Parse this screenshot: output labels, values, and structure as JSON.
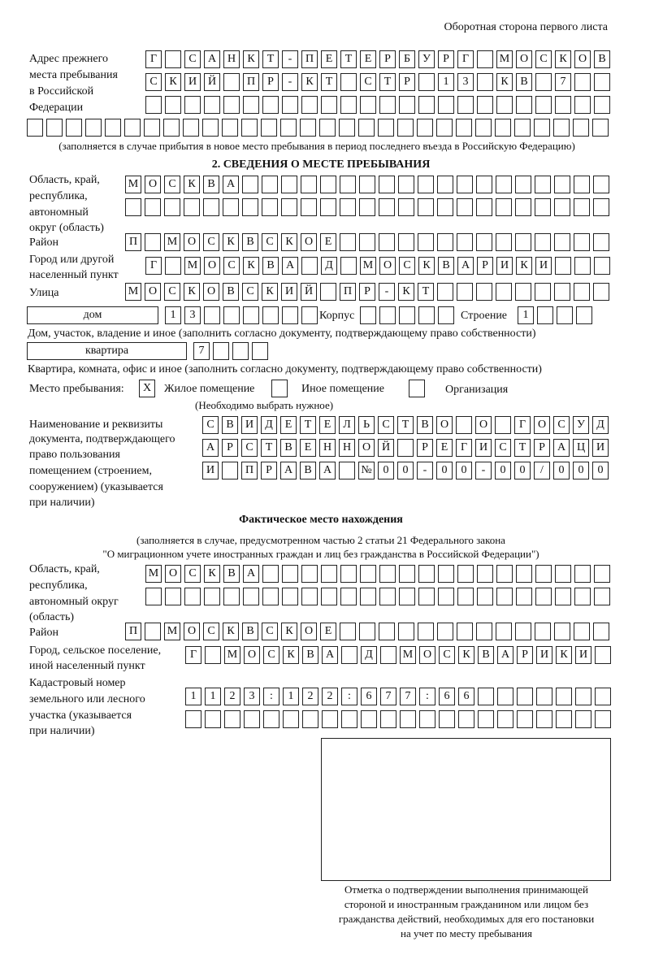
{
  "page_header": "Оборотная сторона первого листа",
  "previous_address": {
    "label": [
      "Адрес прежнего",
      "места пребывания",
      "в Российской",
      "Федерации"
    ],
    "rows": [
      [
        "Г",
        "",
        "С",
        "А",
        "Н",
        "К",
        "Т",
        "-",
        "П",
        "Е",
        "Т",
        "Е",
        "Р",
        "Б",
        "У",
        "Р",
        "Г",
        "",
        "М",
        "О",
        "С",
        "К",
        "О",
        "В"
      ],
      [
        "С",
        "К",
        "И",
        "Й",
        "",
        "П",
        "Р",
        "-",
        "К",
        "Т",
        "",
        "С",
        "Т",
        "Р",
        "",
        "1",
        "3",
        "",
        "К",
        "В",
        "",
        "7",
        "",
        ""
      ],
      [
        "",
        "",
        "",
        "",
        "",
        "",
        "",
        "",
        "",
        "",
        "",
        "",
        "",
        "",
        "",
        "",
        "",
        "",
        "",
        "",
        "",
        "",
        "",
        ""
      ],
      [
        "",
        "",
        "",
        "",
        "",
        "",
        "",
        "",
        "",
        "",
        "",
        "",
        "",
        "",
        "",
        "",
        "",
        "",
        "",
        "",
        "",
        "",
        "",
        "",
        "",
        "",
        "",
        "",
        "",
        ""
      ]
    ],
    "note": "(заполняется в случае прибытия в новое место пребывания в период последнего въезда в Российскую Федерацию)"
  },
  "section2": {
    "title": "2. СВЕДЕНИЯ О МЕСТЕ ПРЕБЫВАНИЯ",
    "region_label": [
      "Область, край,",
      "республика,",
      "автономный",
      "округ (область)"
    ],
    "region_rows": [
      [
        "М",
        "О",
        "С",
        "К",
        "В",
        "А",
        "",
        "",
        "",
        "",
        "",
        "",
        "",
        "",
        "",
        "",
        "",
        "",
        "",
        "",
        "",
        "",
        "",
        "",
        ""
      ],
      [
        "",
        "",
        "",
        "",
        "",
        "",
        "",
        "",
        "",
        "",
        "",
        "",
        "",
        "",
        "",
        "",
        "",
        "",
        "",
        "",
        "",
        "",
        "",
        "",
        ""
      ]
    ],
    "district_label": "Район",
    "district_row": [
      "П",
      "",
      "М",
      "О",
      "С",
      "К",
      "В",
      "С",
      "К",
      "О",
      "Е",
      "",
      "",
      "",
      "",
      "",
      "",
      "",
      "",
      "",
      "",
      "",
      "",
      "",
      ""
    ],
    "city_label": [
      "Город или другой",
      "населенный пункт"
    ],
    "city_row": [
      "Г",
      "",
      "М",
      "О",
      "С",
      "К",
      "В",
      "А",
      "",
      "Д",
      "",
      "М",
      "О",
      "С",
      "К",
      "В",
      "А",
      "Р",
      "И",
      "К",
      "И",
      "",
      "",
      ""
    ],
    "street_label": "Улица",
    "street_row": [
      "М",
      "О",
      "С",
      "К",
      "О",
      "В",
      "С",
      "К",
      "И",
      "Й",
      "",
      "П",
      "Р",
      "-",
      "К",
      "Т",
      "",
      "",
      "",
      "",
      "",
      "",
      "",
      "",
      ""
    ],
    "house_type": "дом",
    "house_row": [
      "1",
      "3",
      "",
      "",
      "",
      "",
      "",
      ""
    ],
    "korpus_label": "Корпус",
    "korpus_row": [
      "",
      "",
      "",
      "",
      ""
    ],
    "building_label": "Строение",
    "building_row": [
      "1",
      "",
      "",
      ""
    ],
    "house_note": "Дом, участок, владение и иное (заполнить согласно документу, подтверждающему право собственности)",
    "apartment_type": "квартира",
    "apartment_row": [
      "7",
      "",
      "",
      ""
    ],
    "apartment_note": "Квартира, комната, офис и иное (заполнить согласно документу, подтверждающему право собственности)",
    "stay_place_label": "Место пребывания:",
    "options": [
      {
        "mark": "X",
        "label": "Жилое помещение"
      },
      {
        "mark": "",
        "label": "Иное помещение"
      },
      {
        "mark": "",
        "label": "Организация"
      }
    ],
    "options_note": "(Необходимо выбрать нужное)",
    "document_label": [
      "Наименование и реквизиты",
      "документа, подтверждающего",
      "право пользования",
      "помещением (строением,",
      "сооружением) (указывается",
      "при наличии)"
    ],
    "document_rows": [
      [
        "С",
        "В",
        "И",
        "Д",
        "Е",
        "Т",
        "Е",
        "Л",
        "Ь",
        "С",
        "Т",
        "В",
        "О",
        "",
        "О",
        "",
        "Г",
        "О",
        "С",
        "У",
        "Д"
      ],
      [
        "А",
        "Р",
        "С",
        "Т",
        "В",
        "Е",
        "Н",
        "Н",
        "О",
        "Й",
        "",
        "Р",
        "Е",
        "Г",
        "И",
        "С",
        "Т",
        "Р",
        "А",
        "Ц",
        "И"
      ],
      [
        "И",
        "",
        "П",
        "Р",
        "А",
        "В",
        "А",
        "",
        "№",
        "0",
        "0",
        "-",
        "0",
        "0",
        "-",
        "0",
        "0",
        "/",
        "0",
        "0",
        "0"
      ]
    ]
  },
  "actual_location": {
    "title": "Фактическое место нахождения",
    "note": [
      "(заполняется в случае, предусмотренном частью 2 статьи 21 Федерального закона",
      "\"О миграционном учете иностранных граждан и лиц без гражданства в Российской Федерации\")"
    ],
    "region_label": [
      "Область, край,",
      "республика,",
      "автономный округ",
      "(область)"
    ],
    "region_rows": [
      [
        "М",
        "О",
        "С",
        "К",
        "В",
        "А",
        "",
        "",
        "",
        "",
        "",
        "",
        "",
        "",
        "",
        "",
        "",
        "",
        "",
        "",
        "",
        "",
        "",
        ""
      ],
      [
        "",
        "",
        "",
        "",
        "",
        "",
        "",
        "",
        "",
        "",
        "",
        "",
        "",
        "",
        "",
        "",
        "",
        "",
        "",
        "",
        "",
        "",
        "",
        ""
      ]
    ],
    "district_label": "Район",
    "district_row": [
      "П",
      "",
      "М",
      "О",
      "С",
      "К",
      "В",
      "С",
      "К",
      "О",
      "Е",
      "",
      "",
      "",
      "",
      "",
      "",
      "",
      "",
      "",
      "",
      "",
      "",
      "",
      ""
    ],
    "city_label": [
      "Город, сельское поселение,",
      "иной населенный пункт"
    ],
    "city_row": [
      "Г",
      "",
      "М",
      "О",
      "С",
      "К",
      "В",
      "А",
      "",
      "Д",
      "",
      "М",
      "О",
      "С",
      "К",
      "В",
      "А",
      "Р",
      "И",
      "К",
      "И",
      ""
    ],
    "cadastral_label": [
      "Кадастровый номер",
      "земельного или лесного",
      "участка (указывается",
      "при наличии)"
    ],
    "cadastral_rows": [
      [
        "1",
        "1",
        "2",
        "3",
        ":",
        "1",
        "2",
        "2",
        ":",
        "6",
        "7",
        "7",
        ":",
        "6",
        "6",
        "",
        "",
        "",
        "",
        "",
        "",
        ""
      ],
      [
        "",
        "",
        "",
        "",
        "",
        "",
        "",
        "",
        "",
        "",
        "",
        "",
        "",
        "",
        "",
        "",
        "",
        "",
        "",
        "",
        "",
        ""
      ]
    ]
  },
  "stamp_caption": [
    "Отметка о подтверждении выполнения принимающей",
    "стороной и иностранным гражданином или лицом без",
    "гражданства действий, необходимых для его постановки",
    "на учет по месту пребывания"
  ]
}
